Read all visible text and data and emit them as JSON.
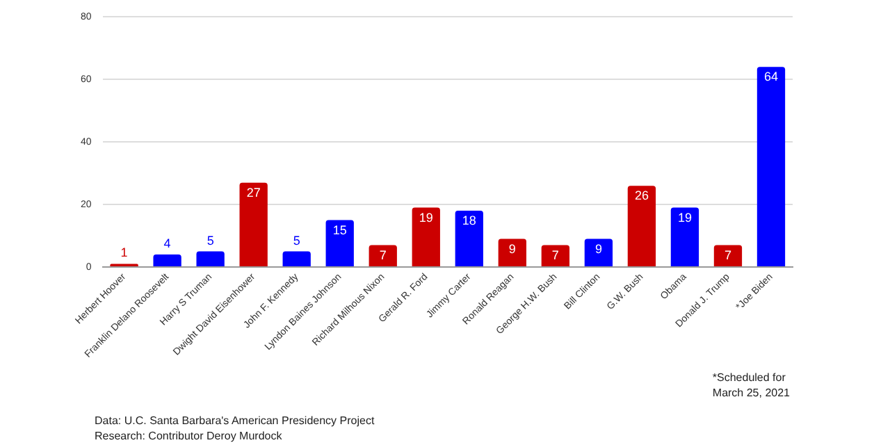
{
  "chart_data": {
    "type": "bar",
    "categories": [
      "Herbert Hoover",
      "Franklin Delano Roosevelt",
      "Harry S Truman",
      "Dwight David Eisenhower",
      "John F. Kennedy",
      "Lyndon Baines Johnson",
      "Richard Milhous Nixon",
      "Gerald R. Ford",
      "Jimmy Carter",
      "Ronald Reagan",
      "George H.W. Bush",
      "Bill Clinton",
      "G.W. Bush",
      "Obama",
      "Donald J. Trump",
      "*Joe Biden"
    ],
    "values": [
      1,
      4,
      5,
      27,
      5,
      15,
      7,
      19,
      18,
      9,
      7,
      9,
      26,
      19,
      7,
      64
    ],
    "colors": [
      "#cc0000",
      "#0000ff",
      "#0000ff",
      "#cc0000",
      "#0000ff",
      "#0000ff",
      "#cc0000",
      "#cc0000",
      "#0000ff",
      "#cc0000",
      "#cc0000",
      "#0000ff",
      "#cc0000",
      "#0000ff",
      "#cc0000",
      "#0000ff"
    ],
    "ylim": [
      0,
      80
    ],
    "yticks": [
      0,
      20,
      40,
      60,
      80
    ],
    "grid": "y",
    "data_labels": true,
    "legend": false,
    "annotations": [
      "*Scheduled for\nMarch 25, 2021",
      "Data: U.C. Santa Barbara's American Presidency Project\nResearch: Contributor Deroy Murdock"
    ]
  }
}
